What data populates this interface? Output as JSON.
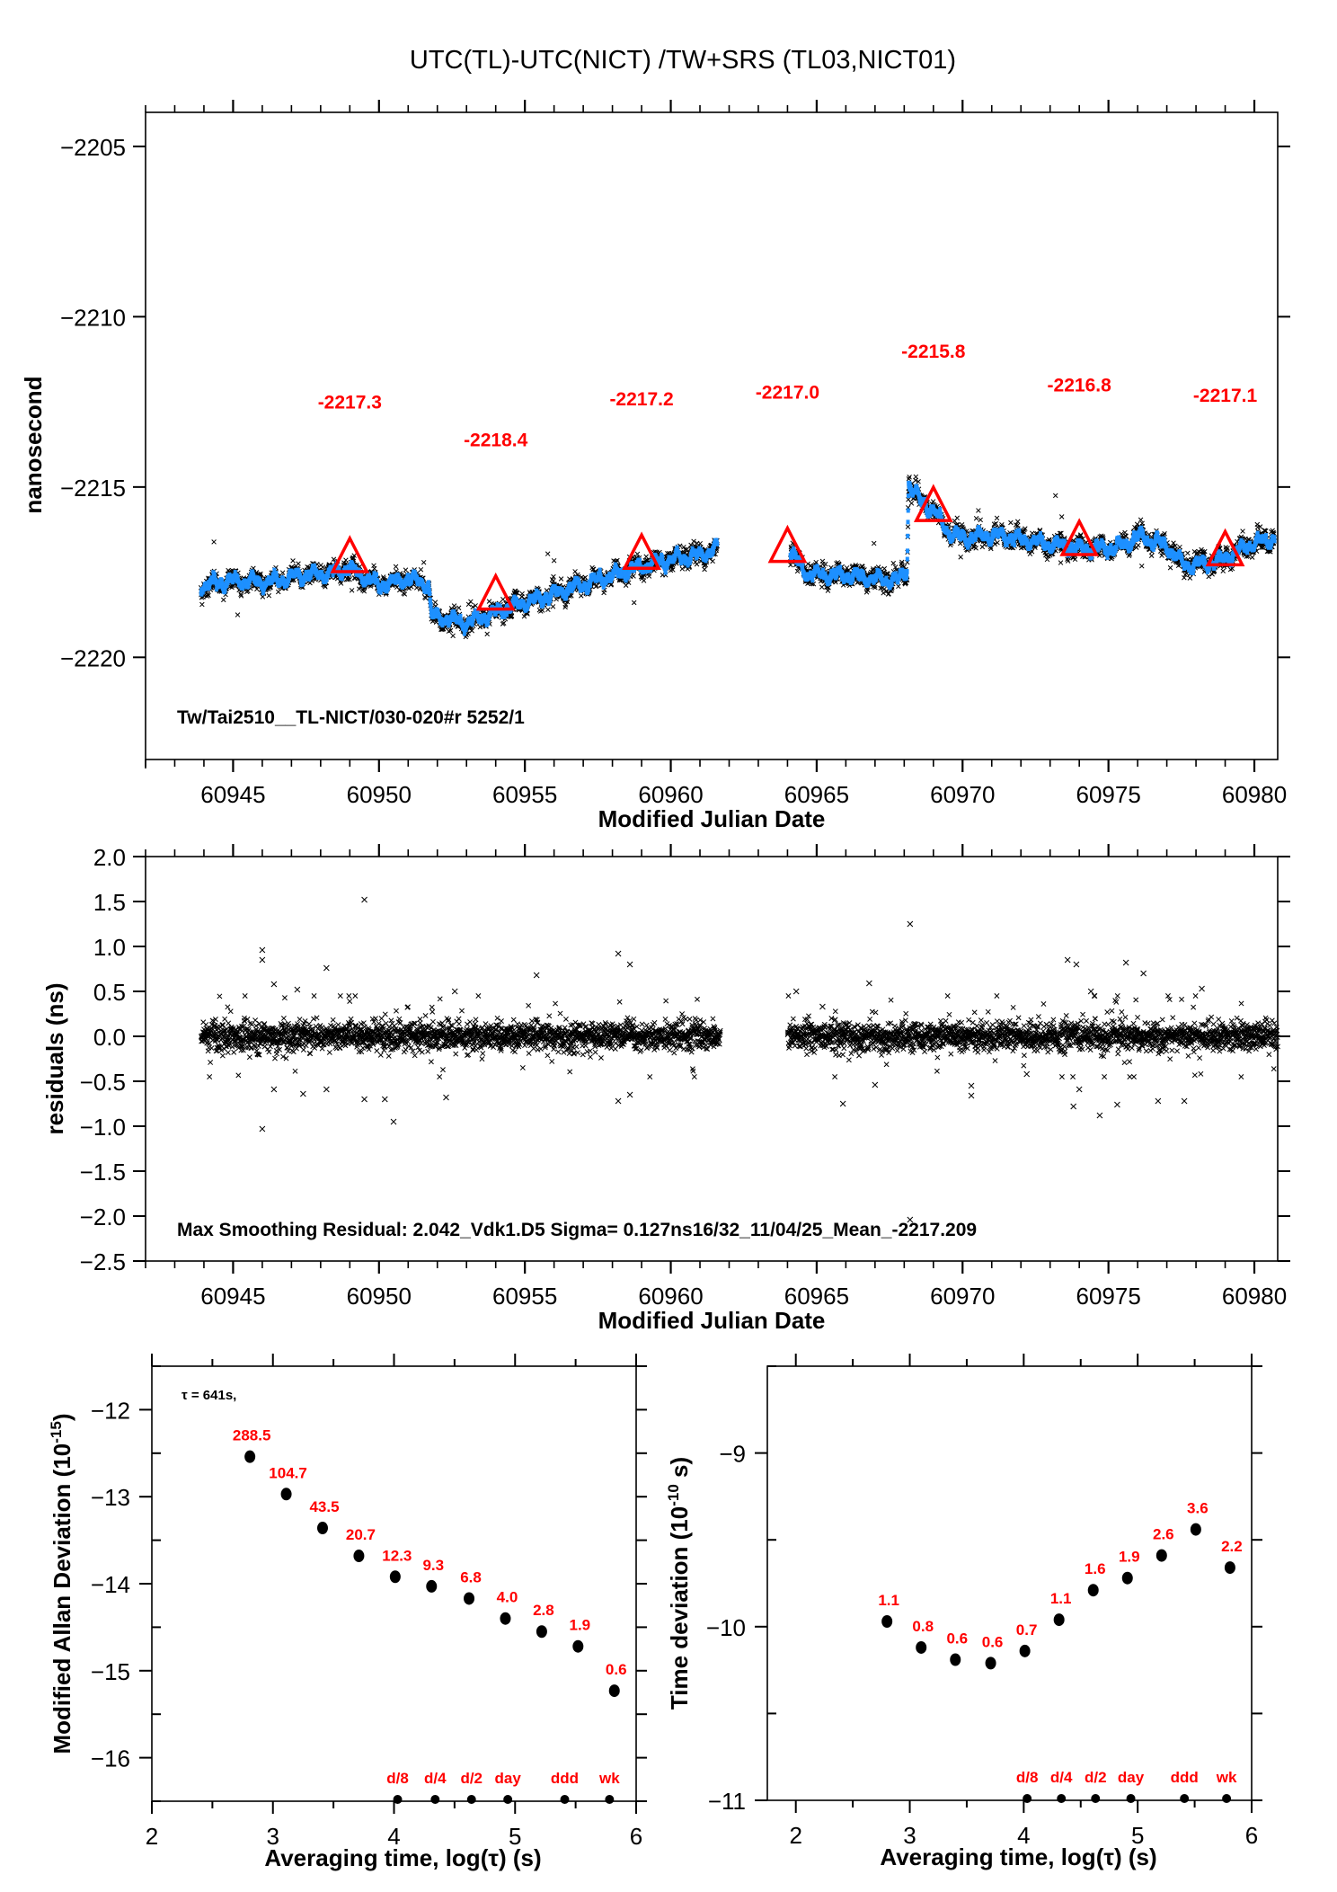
{
  "page": {
    "title": "UTC(TL)-UTC(NICT)  /TW+SRS  (TL03,NICT01)"
  },
  "colors": {
    "smoothed": "#1e90ff",
    "raw": "#000000",
    "highlight": "#ff0000",
    "axes": "#000000"
  },
  "chart_data": [
    {
      "id": "time-series",
      "type": "scatter",
      "title": "UTC(TL)-UTC(NICT)  /TW+SRS  (TL03,NICT01)",
      "xlabel": "Modified Julian Date",
      "ylabel": "nanosecond",
      "xlim": [
        60942,
        60980.8
      ],
      "ylim": [
        -2223,
        -2204
      ],
      "x_ticks": [
        60945,
        60950,
        60955,
        60960,
        60965,
        60970,
        60975,
        60980
      ],
      "x_tick_labels": [
        "60945",
        "60950",
        "60955",
        "60960",
        "60965",
        "60970",
        "60975",
        "60980"
      ],
      "y_ticks": [
        -2205,
        -2210,
        -2215,
        -2220
      ],
      "y_tick_labels": [
        "−2205",
        "−2210",
        "−2215",
        "−2220"
      ],
      "annotation": "Tw/Tai2510__TL-NICT/030-020#r  5252/1",
      "series": [
        {
          "name": "raw measurements",
          "marker": "x",
          "color": "#000000"
        },
        {
          "name": "smoothed",
          "marker": "dot",
          "color": "#1e90ff",
          "segments": [
            {
              "x": [
                60943.9,
                60945.0,
                60946.2,
                60947.2,
                60948.1,
                60949.0,
                60949.6,
                60950.0,
                60951.0,
                60951.7,
                60951.8,
                60952.5,
                60953.0,
                60954.2,
                60955.2,
                60956.1,
                60957.0,
                60957.6,
                60958.5,
                60959.2,
                60960.2,
                60961.0,
                60961.6
              ],
              "y": [
                -2217.9,
                -2217.75,
                -2217.8,
                -2217.6,
                -2217.55,
                -2217.4,
                -2217.7,
                -2217.9,
                -2217.7,
                -2217.85,
                -2218.8,
                -2218.9,
                -2219.0,
                -2218.6,
                -2218.35,
                -2218.1,
                -2217.85,
                -2217.7,
                -2217.45,
                -2217.3,
                -2217.1,
                -2217.0,
                -2216.8
              ]
            },
            {
              "x": [
                60964.1,
                60964.7,
                60965.5,
                60966.2,
                60967.0,
                60967.8,
                60968.1,
                60968.15,
                60968.55,
                60969.0,
                60969.6,
                60970.2,
                60971.2,
                60972.4,
                60973.2,
                60974.0,
                60975.2,
                60976.1,
                60977.0,
                60977.6,
                60978.3,
                60978.9,
                60979.8,
                60980.7
              ],
              "y": [
                -2216.95,
                -2217.55,
                -2217.6,
                -2217.6,
                -2217.7,
                -2217.75,
                -2217.4,
                -2214.9,
                -2215.4,
                -2215.7,
                -2216.4,
                -2216.5,
                -2216.4,
                -2216.6,
                -2216.7,
                -2216.8,
                -2216.8,
                -2216.45,
                -2216.75,
                -2217.3,
                -2217.25,
                -2217.15,
                -2216.7,
                -2216.5
              ]
            }
          ]
        },
        {
          "name": "daily smoothed value",
          "marker": "triangle",
          "color": "#ff0000",
          "points": [
            {
              "x": 60949,
              "y": -2217.3,
              "label": "-2217.3"
            },
            {
              "x": 60954,
              "y": -2218.4,
              "label": "-2218.4"
            },
            {
              "x": 60959,
              "y": -2217.2,
              "label": "-2217.2"
            },
            {
              "x": 60964,
              "y": -2217.0,
              "label": "-2217.0"
            },
            {
              "x": 60969,
              "y": -2215.8,
              "label": "-2215.8"
            },
            {
              "x": 60974,
              "y": -2216.8,
              "label": "-2216.8"
            },
            {
              "x": 60979,
              "y": -2217.1,
              "label": "-2217.1"
            }
          ]
        }
      ]
    },
    {
      "id": "residuals",
      "type": "scatter",
      "xlabel": "Modified Julian Date",
      "ylabel": "residuals (ns)",
      "xlim": [
        60942,
        60980.8
      ],
      "ylim": [
        -2.5,
        2.0
      ],
      "x_ticks": [
        60945,
        60950,
        60955,
        60960,
        60965,
        60970,
        60975,
        60980
      ],
      "x_tick_labels": [
        "60945",
        "60950",
        "60955",
        "60960",
        "60965",
        "60970",
        "60975",
        "60980"
      ],
      "y_ticks": [
        2.0,
        1.5,
        1.0,
        0.5,
        0.0,
        -0.5,
        -1.0,
        -1.5,
        -2.0,
        -2.5
      ],
      "y_tick_labels": [
        "2.0",
        "1.5",
        "1.0",
        "0.5",
        "0.0",
        "−0.5",
        "−1.0",
        "−1.5",
        "−2.0",
        "−2.5"
      ],
      "annotation": "Max Smoothing Residual: 2.042_Vdk1.D5  Sigma= 0.127ns16/32_11/04/25_Mean_-2217.209",
      "data_ranges": [
        [
          60943.9,
          60961.7
        ],
        [
          60964.0,
          60980.8
        ]
      ],
      "sigma": 0.127,
      "outliers": [
        {
          "x": 60946.0,
          "y": 0.96
        },
        {
          "x": 60946.0,
          "y": 0.85
        },
        {
          "x": 60946.0,
          "y": -1.03
        },
        {
          "x": 60949.5,
          "y": 1.52
        },
        {
          "x": 60948.2,
          "y": 0.76
        },
        {
          "x": 60947.2,
          "y": 0.52
        },
        {
          "x": 60950.5,
          "y": -0.95
        },
        {
          "x": 60950.2,
          "y": -0.7
        },
        {
          "x": 60949.5,
          "y": -0.7
        },
        {
          "x": 60946.4,
          "y": 0.58
        },
        {
          "x": 60946.4,
          "y": -0.59
        },
        {
          "x": 60948.2,
          "y": -0.59
        },
        {
          "x": 60947.4,
          "y": -0.64
        },
        {
          "x": 60955.4,
          "y": 0.68
        },
        {
          "x": 60958.2,
          "y": 0.92
        },
        {
          "x": 60958.6,
          "y": 0.8
        },
        {
          "x": 60958.2,
          "y": -0.72
        },
        {
          "x": 60958.6,
          "y": -0.65
        },
        {
          "x": 60952.6,
          "y": 0.5
        },
        {
          "x": 60952.3,
          "y": -0.68
        },
        {
          "x": 60968.2,
          "y": 1.25
        },
        {
          "x": 60968.2,
          "y": -2.04
        },
        {
          "x": 60965.9,
          "y": -0.75
        },
        {
          "x": 60966.8,
          "y": 0.59
        },
        {
          "x": 60970.3,
          "y": -0.66
        },
        {
          "x": 60970.3,
          "y": -0.55
        },
        {
          "x": 60973.6,
          "y": 0.85
        },
        {
          "x": 60973.9,
          "y": 0.8
        },
        {
          "x": 60975.6,
          "y": 0.82
        },
        {
          "x": 60974.4,
          "y": 0.5
        },
        {
          "x": 60973.8,
          "y": -0.78
        },
        {
          "x": 60974.7,
          "y": -0.88
        },
        {
          "x": 60975.3,
          "y": -0.76
        },
        {
          "x": 60976.7,
          "y": -0.72
        },
        {
          "x": 60977.6,
          "y": -0.72
        },
        {
          "x": 60974.0,
          "y": -0.59
        },
        {
          "x": 60976.2,
          "y": 0.7
        },
        {
          "x": 60978.2,
          "y": 0.53
        },
        {
          "x": 60967.0,
          "y": -0.54
        },
        {
          "x": 60964.3,
          "y": 0.5
        },
        {
          "x": 60965.2,
          "y": 0.33
        },
        {
          "x": 60972.2,
          "y": -0.42
        }
      ]
    },
    {
      "id": "mdev",
      "type": "scatter",
      "xlabel": "Averaging time, log(τ) (s)",
      "ylabel": "Modified Allan Deviation (10^-15)",
      "xlim": [
        2,
        6
      ],
      "ylim": [
        -16.5,
        -11.5
      ],
      "x_ticks": [
        2,
        3,
        4,
        5,
        6
      ],
      "x_tick_labels": [
        "2",
        "3",
        "4",
        "5",
        "6"
      ],
      "y_ticks": [
        -12,
        -13,
        -14,
        -15,
        -16
      ],
      "y_tick_labels": [
        "−12",
        "−13",
        "−14",
        "−15",
        "−16"
      ],
      "annotation": "τ = 641s,",
      "points": [
        {
          "x": 2.81,
          "y": -12.54,
          "label": "288.5"
        },
        {
          "x": 3.11,
          "y": -12.97,
          "label": "104.7"
        },
        {
          "x": 3.41,
          "y": -13.36,
          "label": "43.5"
        },
        {
          "x": 3.71,
          "y": -13.68,
          "label": "20.7"
        },
        {
          "x": 4.01,
          "y": -13.92,
          "label": "12.3"
        },
        {
          "x": 4.31,
          "y": -14.03,
          "label": "9.3"
        },
        {
          "x": 4.62,
          "y": -14.17,
          "label": "6.8"
        },
        {
          "x": 4.92,
          "y": -14.4,
          "label": "4.0"
        },
        {
          "x": 5.22,
          "y": -14.55,
          "label": "2.8"
        },
        {
          "x": 5.52,
          "y": -14.72,
          "label": "1.9"
        },
        {
          "x": 5.82,
          "y": -15.23,
          "label": "0.6"
        }
      ],
      "markers": [
        {
          "x": 4.03,
          "label": "d/8"
        },
        {
          "x": 4.34,
          "label": "d/4"
        },
        {
          "x": 4.64,
          "label": "d/2"
        },
        {
          "x": 4.94,
          "label": "day"
        },
        {
          "x": 5.41,
          "label": "ddd"
        },
        {
          "x": 5.78,
          "label": "wk"
        }
      ]
    },
    {
      "id": "tdev",
      "type": "scatter",
      "xlabel": "Averaging time, log(τ) (s)",
      "ylabel": "Time deviation (10^-10 s)",
      "xlim": [
        1.75,
        6
      ],
      "ylim": [
        -11,
        -8.5
      ],
      "x_ticks": [
        2,
        3,
        4,
        5,
        6
      ],
      "x_tick_labels": [
        "2",
        "3",
        "4",
        "5",
        "6"
      ],
      "y_ticks": [
        -9,
        -10,
        -11
      ],
      "y_tick_labels": [
        "−9",
        "−10",
        "−11"
      ],
      "points": [
        {
          "x": 2.8,
          "y": -9.97,
          "label": "1.1"
        },
        {
          "x": 3.1,
          "y": -10.12,
          "label": "0.8"
        },
        {
          "x": 3.4,
          "y": -10.19,
          "label": "0.6"
        },
        {
          "x": 3.71,
          "y": -10.21,
          "label": "0.6"
        },
        {
          "x": 4.01,
          "y": -10.14,
          "label": "0.7"
        },
        {
          "x": 4.31,
          "y": -9.96,
          "label": "1.1"
        },
        {
          "x": 4.61,
          "y": -9.79,
          "label": "1.6"
        },
        {
          "x": 4.91,
          "y": -9.72,
          "label": "1.9"
        },
        {
          "x": 5.21,
          "y": -9.59,
          "label": "2.6"
        },
        {
          "x": 5.51,
          "y": -9.44,
          "label": "3.6"
        },
        {
          "x": 5.81,
          "y": -9.66,
          "label": "2.2"
        }
      ],
      "markers": [
        {
          "x": 4.03,
          "label": "d/8"
        },
        {
          "x": 4.33,
          "label": "d/4"
        },
        {
          "x": 4.63,
          "label": "d/2"
        },
        {
          "x": 4.94,
          "label": "day"
        },
        {
          "x": 5.41,
          "label": "ddd"
        },
        {
          "x": 5.78,
          "label": "wk"
        }
      ]
    }
  ],
  "labels": {
    "mdev_ylabel_main": "Modified Allan Deviation (10",
    "mdev_ylabel_sup": "-15",
    "mdev_ylabel_end": ")",
    "tdev_ylabel_main": "Time deviation (10",
    "tdev_ylabel_sup": "-10",
    "tdev_ylabel_end": " s)"
  }
}
